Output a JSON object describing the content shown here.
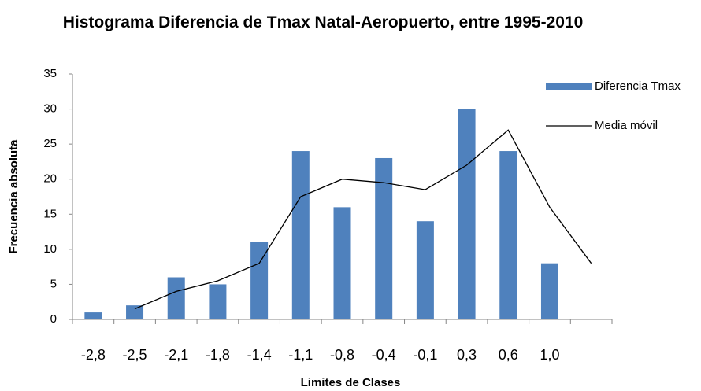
{
  "chart_data": {
    "type": "bar",
    "title": "Histograma Diferencia de Tmax Natal-Aeropuerto, entre 1995-2010",
    "x_label": "Limites de Clases",
    "y_label": "Frecuencia absoluta",
    "categories": [
      "-2,8",
      "-2,5",
      "-2,1",
      "-1,8",
      "-1,4",
      "-1,1",
      "-0,8",
      "-0,4",
      "-0,1",
      "0,3",
      "0,6",
      "1,0",
      null
    ],
    "series": [
      {
        "name": "Diferencia Tmax",
        "type": "bar",
        "color": "#4f81bd",
        "values": [
          1,
          2,
          6,
          5,
          11,
          24,
          16,
          23,
          14,
          30,
          24,
          8,
          null
        ]
      },
      {
        "name": "Media móvil",
        "type": "line",
        "color": "#000000",
        "values": [
          null,
          1.5,
          4,
          5.5,
          8,
          17.5,
          20,
          19.5,
          18.5,
          22,
          27,
          16,
          8
        ]
      }
    ],
    "ylim": [
      0,
      35
    ],
    "yticks": [
      0,
      5,
      10,
      15,
      20,
      25,
      30,
      35
    ],
    "grid": false,
    "legend": "right"
  }
}
